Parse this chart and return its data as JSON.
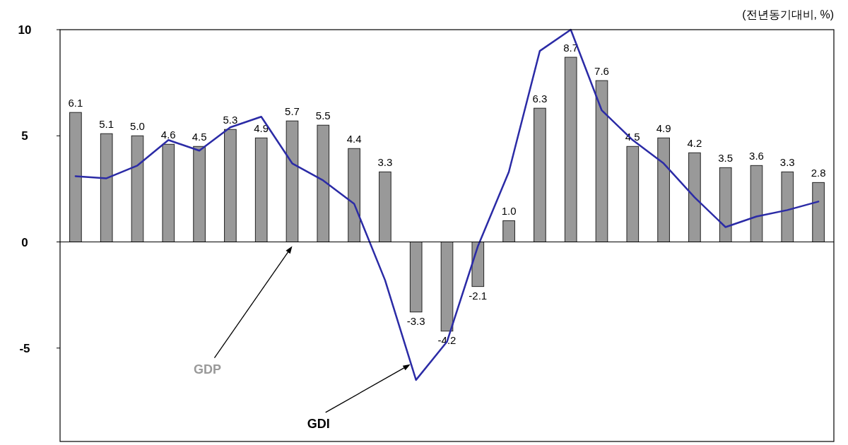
{
  "chart_data": {
    "type": "bar",
    "categories": [
      null,
      null,
      null,
      null,
      null,
      null,
      null,
      null,
      null,
      null,
      null,
      null,
      null,
      null,
      null,
      null,
      null,
      null,
      null,
      null,
      null,
      null,
      null,
      null,
      null
    ],
    "series": [
      {
        "name": "GDP",
        "color": "#999999",
        "values": [
          6.1,
          5.1,
          5.0,
          4.6,
          4.5,
          5.3,
          4.9,
          5.7,
          5.5,
          4.4,
          3.3,
          -3.3,
          -4.2,
          -2.1,
          1.0,
          6.3,
          8.7,
          7.6,
          4.5,
          4.9,
          4.2,
          3.5,
          3.6,
          3.3,
          2.8
        ],
        "value_labels": [
          "6.1",
          "5.1",
          "5.0",
          "4.6",
          "4.5",
          "5.3",
          "4.9",
          "5.7",
          "5.5",
          "4.4",
          "3.3",
          "-3.3",
          "-4.2",
          "-2.1",
          "1.0",
          "6.3",
          "8.7",
          "7.6",
          "4.5",
          "4.9",
          "4.2",
          "3.5",
          "3.6",
          "3.3",
          "2.8"
        ]
      },
      {
        "name": "GDI",
        "type": "line",
        "color": "#2b2ba6",
        "values": [
          3.1,
          3.0,
          3.6,
          4.8,
          4.3,
          5.4,
          5.9,
          3.7,
          2.9,
          1.8,
          -1.8,
          -6.5,
          -4.7,
          -0.2,
          3.3,
          9.0,
          10.0,
          6.2,
          4.8,
          3.7,
          2.1,
          0.7,
          1.2,
          1.5,
          1.9
        ]
      }
    ],
    "ylim": [
      -9.4,
      10
    ],
    "yticks": [
      10,
      5,
      0,
      -5
    ],
    "legend": false,
    "marker": "none",
    "annotations": [
      "(전년동기대비, %)"
    ]
  }
}
